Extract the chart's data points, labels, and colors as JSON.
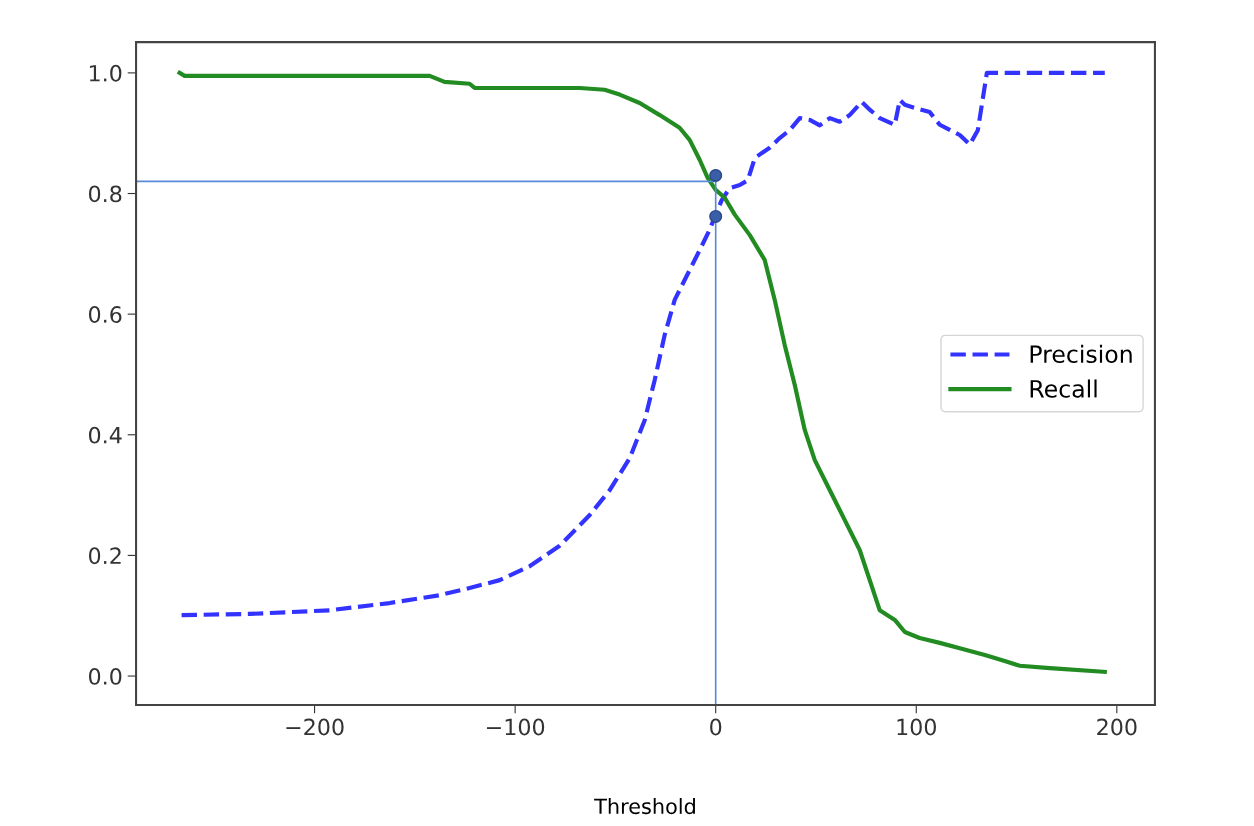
{
  "chart_data": {
    "type": "line",
    "xlabel": "Threshold",
    "xlim": [
      -289,
      219
    ],
    "ylim": [
      -0.048,
      1.051
    ],
    "xticks": [
      {
        "value": -200,
        "label": "−200"
      },
      {
        "value": -100,
        "label": "−100"
      },
      0,
      100,
      200
    ],
    "yticks": [
      {
        "value": 0,
        "label": "0.0"
      },
      {
        "value": 0.2,
        "label": "0.2"
      },
      {
        "value": 0.4,
        "label": "0.4"
      },
      {
        "value": 0.6,
        "label": "0.6"
      },
      {
        "value": 0.8,
        "label": "0.8"
      },
      {
        "value": 1.0,
        "label": "1.0"
      }
    ],
    "grid": false,
    "legend": "right",
    "series": [
      {
        "name": "Precision",
        "color": "#3333ff",
        "line_style": "dashed",
        "x": [
          -266.3,
          -232.4,
          -192.5,
          -162.6,
          -137.7,
          -122.7,
          -107.7,
          -92.8,
          -77.8,
          -62.8,
          -52.9,
          -42.9,
          -35.4,
          -30.4,
          -25.4,
          -20.4,
          -13.0,
          -8.0,
          -3.0,
          0,
          3.0,
          7.0,
          12.0,
          16.0,
          19.5,
          26.9,
          31.9,
          36.9,
          41.9,
          46.9,
          51.9,
          56.9,
          61.8,
          66.8,
          72.8,
          76.8,
          81.8,
          89.3,
          91.8,
          94.3,
          99.3,
          106.7,
          111.7,
          121.7,
          126.7,
          130.7,
          135.2,
          194.0
        ],
        "values": [
          0.101,
          0.103,
          0.109,
          0.121,
          0.134,
          0.146,
          0.159,
          0.182,
          0.216,
          0.267,
          0.308,
          0.361,
          0.424,
          0.491,
          0.566,
          0.624,
          0.673,
          0.706,
          0.74,
          0.765,
          0.789,
          0.809,
          0.814,
          0.822,
          0.859,
          0.876,
          0.892,
          0.905,
          0.925,
          0.922,
          0.913,
          0.925,
          0.919,
          0.93,
          0.952,
          0.939,
          0.925,
          0.914,
          0.955,
          0.947,
          0.942,
          0.935,
          0.914,
          0.897,
          0.881,
          0.905,
          1.0,
          1.0
        ]
      },
      {
        "name": "Recall",
        "color": "#228b22",
        "line_style": "solid",
        "x": [
          -267.3,
          -264.8,
          -142.6,
          -135.2,
          -122.7,
          -120.2,
          -67.8,
          -55.4,
          -47.9,
          -37.9,
          -27.9,
          -18.0,
          -13.0,
          -8.0,
          -4.0,
          0,
          4.5,
          9.5,
          17.0,
          24.4,
          29.4,
          34.4,
          39.4,
          44.4,
          49.4,
          56.9,
          64.3,
          71.8,
          76.8,
          81.8,
          89.3,
          94.3,
          101.7,
          111.7,
          121.7,
          134.2,
          144.1,
          151.6,
          166.6,
          194.0
        ],
        "values": [
          1.0,
          0.995,
          0.995,
          0.985,
          0.982,
          0.975,
          0.975,
          0.972,
          0.964,
          0.95,
          0.93,
          0.909,
          0.889,
          0.856,
          0.826,
          0.806,
          0.793,
          0.765,
          0.731,
          0.69,
          0.624,
          0.549,
          0.483,
          0.408,
          0.358,
          0.308,
          0.259,
          0.209,
          0.159,
          0.109,
          0.093,
          0.073,
          0.063,
          0.055,
          0.046,
          0.035,
          0.025,
          0.017,
          0.013,
          0.007
        ]
      },
      {
        "type": "line",
        "color": "#5b8bd8",
        "line_style": "solid",
        "x": [
          -289,
          0
        ],
        "values": [
          0.82,
          0.82
        ]
      },
      {
        "type": "line",
        "color": "#5b8bd8",
        "line_style": "solid",
        "x": [
          0,
          0
        ],
        "values": [
          -0.048,
          0.82
        ]
      },
      {
        "type": "scatter",
        "color": "#3a5fa8",
        "marker": "circle",
        "x": [
          0,
          0
        ],
        "values": [
          0.83,
          0.762
        ]
      }
    ]
  }
}
